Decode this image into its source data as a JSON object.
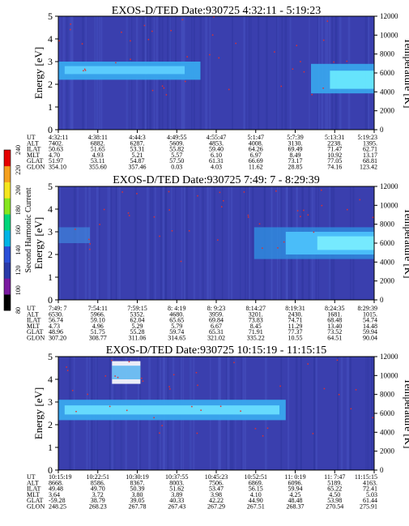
{
  "colorbar": {
    "label": "Second Harmonic Current",
    "ticks": [
      "80",
      "100",
      "120",
      "140",
      "160",
      "180",
      "200",
      "220",
      "240"
    ],
    "colors": [
      "#000000",
      "#7a1aa0",
      "#2a3aa8",
      "#2a4fd8",
      "#00b4e6",
      "#00d67a",
      "#86e61e",
      "#f5e61e",
      "#f5a01e",
      "#e60000"
    ]
  },
  "chart_data": [
    {
      "type": "heatmap",
      "title": "EXOS-D/TED   Date:930725  4:32:11 - 5:19:23",
      "ylabel": "Energy [eV]",
      "ylabel_right": "Temperature [K]",
      "ylim": [
        0,
        5
      ],
      "yticks": [
        "0",
        "1",
        "2",
        "3",
        "4",
        "5"
      ],
      "ylim_right": [
        0,
        12000
      ],
      "yticks_right": [
        "0",
        "2000",
        "4000",
        "6000",
        "8000",
        "10000",
        "12000"
      ],
      "ephemeris_labels": [
        "UT",
        "ALT",
        "ILAT",
        "MLT",
        "GLAT",
        "GLON"
      ],
      "ephemeris": [
        [
          "4:32:11",
          "4:38:11",
          "4:44:3",
          "4:49:55",
          "4:55:47",
          "5:1:47",
          "5:7:39",
          "5:13:31",
          "5:19:23"
        ],
        [
          "7402.",
          "6882.",
          "6287.",
          "5609.",
          "4853.",
          "4008.",
          "3130.",
          "2238.",
          "1395."
        ],
        [
          "50.63",
          "51.65",
          "53.31",
          "55.82",
          "59.40",
          "64.26",
          "69.49",
          "71.47",
          "62.71"
        ],
        [
          "4.70",
          "4.93",
          "5.21",
          "5.57",
          "6.10",
          "6.97",
          "8.49",
          "10.92",
          "13.17"
        ],
        [
          "51.97",
          "53.11",
          "54.87",
          "57.50",
          "61.31",
          "66.69",
          "73.17",
          "77.05",
          "68.81"
        ],
        [
          "354.10",
          "355.60",
          "357.46",
          "0.03",
          "4.03",
          "11.62",
          "28.85",
          "74.16",
          "123.42"
        ]
      ]
    },
    {
      "type": "heatmap",
      "title": "EXOS-D/TED   Date:930725  7:49: 7 - 8:29:39",
      "ylabel": "Energy [eV]",
      "ylabel_right": "Temperature [K]",
      "ylim": [
        0,
        5
      ],
      "yticks": [
        "0",
        "1",
        "2",
        "3",
        "4",
        "5"
      ],
      "ylim_right": [
        0,
        12000
      ],
      "yticks_right": [
        "0",
        "2000",
        "4000",
        "6000",
        "8000",
        "10000",
        "12000"
      ],
      "ephemeris_labels": [
        "UT",
        "ALT",
        "ILAT",
        "MLT",
        "GLAT",
        "GLON"
      ],
      "ephemeris": [
        [
          "7:49: 7",
          "7:54:11",
          "7:59:15",
          "8: 4:19",
          "8: 9:23",
          "8:14:27",
          "8:19:31",
          "8:24:35",
          "8:29:39"
        ],
        [
          "6530.",
          "5966.",
          "5352.",
          "4680.",
          "3959.",
          "3201.",
          "2430.",
          "1681.",
          "1015."
        ],
        [
          "56.74",
          "59.10",
          "62.04",
          "65.65",
          "69.84",
          "73.83",
          "74.71",
          "68.48",
          "54.74"
        ],
        [
          "4.73",
          "4.96",
          "5.29",
          "5.79",
          "6.67",
          "8.45",
          "11.29",
          "13.40",
          "14.48"
        ],
        [
          "48.96",
          "51.75",
          "55.28",
          "59.74",
          "65.31",
          "71.91",
          "77.37",
          "73.52",
          "59.94"
        ],
        [
          "307.20",
          "308.77",
          "311.06",
          "314.65",
          "321.02",
          "335.22",
          "10.55",
          "64.51",
          "90.04"
        ]
      ]
    },
    {
      "type": "heatmap",
      "title": "EXOS-D/TED   Date:930725  10:15:19 - 11:15:15",
      "ylabel": "Energy [eV]",
      "ylabel_right": "Temperature [K]",
      "ylim": [
        0,
        5
      ],
      "yticks": [
        "0",
        "1",
        "2",
        "3",
        "4",
        "5"
      ],
      "ylim_right": [
        0,
        12000
      ],
      "yticks_right": [
        "0",
        "2000",
        "4000",
        "6000",
        "8000",
        "10000",
        "12000"
      ],
      "ephemeris_labels": [
        "UT",
        "ALT",
        "ILAT",
        "MLT",
        "GLAT",
        "GLON"
      ],
      "ephemeris": [
        [
          "10:15:19",
          "10:22:51",
          "10:30:19",
          "10:37:55",
          "10:45:23",
          "10:52:51",
          "11: 0:19",
          "11: 7:47",
          "11:15:15"
        ],
        [
          "8668.",
          "8586.",
          "8367.",
          "8003.",
          "7506.",
          "6869.",
          "6096.",
          "5189.",
          "4163."
        ],
        [
          "49.48",
          "49.70",
          "50.39",
          "51.62",
          "53.47",
          "56.15",
          "59.94",
          "65.22",
          "72.41"
        ],
        [
          "3.64",
          "3.72",
          "3.80",
          "3.89",
          "3.98",
          "4.10",
          "4.25",
          "4.50",
          "5.03"
        ],
        [
          "-59.28",
          "38.79",
          "39.05",
          "40.33",
          "42.22",
          "44.90",
          "48.48",
          "53.98",
          "61.44"
        ],
        [
          "248.25",
          "268.23",
          "267.78",
          "267.43",
          "267.29",
          "267.51",
          "268.37",
          "270.54",
          "275.91"
        ]
      ]
    }
  ]
}
